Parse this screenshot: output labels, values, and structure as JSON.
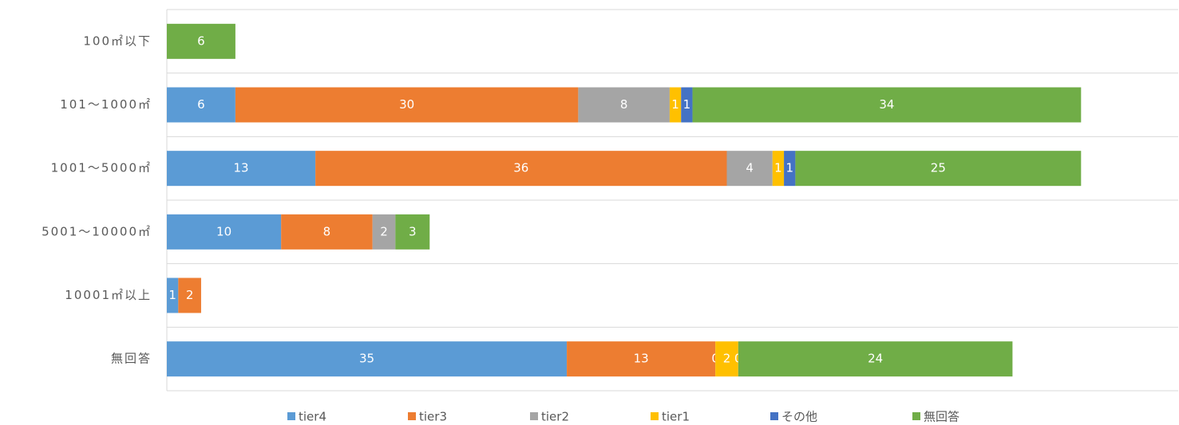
{
  "chart_data": {
    "type": "stacked-barh",
    "categories": [
      "100㎡以下",
      "101～1000㎡",
      "1001～5000㎡",
      "5001～10000㎡",
      "10001㎡以上",
      "無回答"
    ],
    "series": [
      {
        "name": "tier4",
        "color": "#5b9bd5",
        "values": [
          null,
          6,
          13,
          10,
          1,
          35
        ]
      },
      {
        "name": "tier3",
        "color": "#ed7d31",
        "values": [
          null,
          30,
          36,
          8,
          2,
          13
        ]
      },
      {
        "name": "tier2",
        "color": "#a5a5a5",
        "values": [
          null,
          8,
          4,
          2,
          null,
          0
        ]
      },
      {
        "name": "tier1",
        "color": "#ffc000",
        "values": [
          null,
          1,
          1,
          null,
          null,
          2
        ]
      },
      {
        "name": "その他",
        "color": "#4472c4",
        "values": [
          null,
          1,
          1,
          null,
          null,
          0
        ]
      },
      {
        "name": "無回答",
        "color": "#70ad47",
        "values": [
          6,
          34,
          25,
          3,
          null,
          24
        ]
      }
    ],
    "xlim": [
      0,
      88.5
    ],
    "legend": "bottom"
  }
}
